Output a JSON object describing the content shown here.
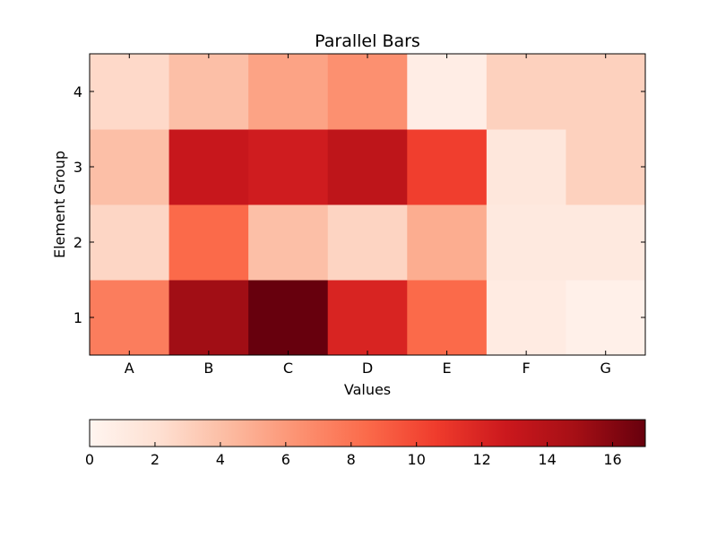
{
  "chart_data": {
    "type": "heatmap",
    "title": "Parallel Bars",
    "xlabel": "Values",
    "ylabel": "Element Group",
    "x_categories": [
      "A",
      "B",
      "C",
      "D",
      "E",
      "F",
      "G"
    ],
    "y_categories": [
      "1",
      "2",
      "3",
      "4"
    ],
    "values": [
      [
        7.5,
        15,
        17,
        12,
        8.5,
        1.0,
        0.5
      ],
      [
        2.7,
        8.5,
        4.0,
        2.8,
        5.0,
        1.2,
        1.2
      ],
      [
        4.0,
        13,
        12.5,
        13.5,
        10.5,
        1.4,
        3.0
      ],
      [
        2.5,
        4.0,
        5.5,
        6.5,
        0.8,
        3.0,
        3.0
      ]
    ],
    "colorbar": {
      "min": 0,
      "max": 17,
      "ticks": [
        "0",
        "2",
        "4",
        "6",
        "8",
        "10",
        "12",
        "14",
        "16"
      ],
      "orientation": "horizontal",
      "colormap": "Reds"
    }
  }
}
